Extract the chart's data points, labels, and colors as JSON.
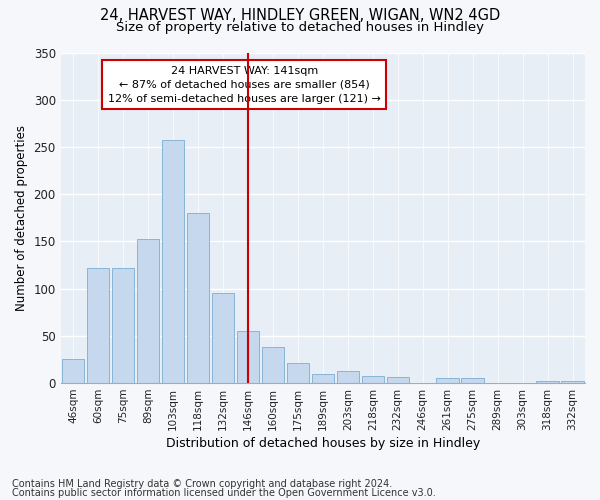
{
  "title1": "24, HARVEST WAY, HINDLEY GREEN, WIGAN, WN2 4GD",
  "title2": "Size of property relative to detached houses in Hindley",
  "xlabel": "Distribution of detached houses by size in Hindley",
  "ylabel": "Number of detached properties",
  "categories": [
    "46sqm",
    "60sqm",
    "75sqm",
    "89sqm",
    "103sqm",
    "118sqm",
    "132sqm",
    "146sqm",
    "160sqm",
    "175sqm",
    "189sqm",
    "203sqm",
    "218sqm",
    "232sqm",
    "246sqm",
    "261sqm",
    "275sqm",
    "289sqm",
    "303sqm",
    "318sqm",
    "332sqm"
  ],
  "values": [
    25,
    122,
    122,
    153,
    257,
    180,
    95,
    55,
    38,
    21,
    10,
    13,
    7,
    6,
    0,
    5,
    5,
    0,
    0,
    2,
    2
  ],
  "bar_color": "#c5d8ee",
  "bar_edge_color": "#7aadd4",
  "marker_color": "#cc0000",
  "annotation_line1": "24 HARVEST WAY: 141sqm",
  "annotation_line2": "← 87% of detached houses are smaller (854)",
  "annotation_line3": "12% of semi-detached houses are larger (121) →",
  "ylim": [
    0,
    350
  ],
  "yticks": [
    0,
    50,
    100,
    150,
    200,
    250,
    300,
    350
  ],
  "bg_color": "#e8eef6",
  "grid_color": "#ffffff",
  "fig_bg": "#f5f7fb",
  "footer1": "Contains HM Land Registry data © Crown copyright and database right 2024.",
  "footer2": "Contains public sector information licensed under the Open Government Licence v3.0."
}
